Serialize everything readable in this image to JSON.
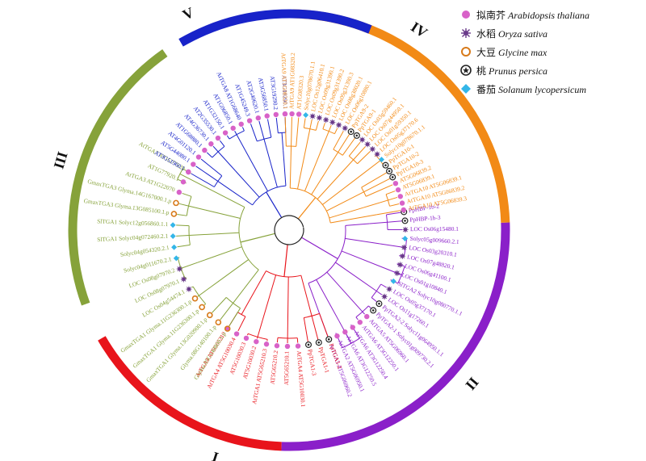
{
  "colors": {
    "clade_I": "#e8141b",
    "clade_II": "#8a1fc9",
    "clade_III": "#86a23a",
    "clade_IV": "#f28a16",
    "clade_V": "#1823c9",
    "arabidopsis": "#d862c8",
    "oryza": "#6a3a8a",
    "glycine": "#d77a1a",
    "prunus": "#222222",
    "solanum": "#33b6e8"
  },
  "legend": [
    {
      "cn": "拟南芥",
      "latin": "Arabidopsis thaliana",
      "marker": "circle",
      "color": "#d862c8"
    },
    {
      "cn": "水稻",
      "latin": "Oryza sativa",
      "marker": "burst",
      "color": "#6a3a8a"
    },
    {
      "cn": "大豆",
      "latin": "Glycine max",
      "marker": "ring",
      "color": "#d77a1a"
    },
    {
      "cn": "桃",
      "latin": "Prunus persica",
      "marker": "star",
      "color": "#222222"
    },
    {
      "cn": "番茄",
      "latin": "Solanum lycopersicum",
      "marker": "diamond",
      "color": "#33b6e8"
    }
  ],
  "clades": [
    {
      "id": "I",
      "label": "I",
      "color": "#e8141b"
    },
    {
      "id": "II",
      "label": "II",
      "color": "#8a1fc9"
    },
    {
      "id": "III",
      "label": "III",
      "color": "#86a23a"
    },
    {
      "id": "IV",
      "label": "IV",
      "color": "#f28a16"
    },
    {
      "id": "V",
      "label": "V",
      "color": "#1823c9"
    }
  ],
  "leaves": [
    {
      "label": "PpHBP-1b-2",
      "clade": "II",
      "marker": "star"
    },
    {
      "label": "PpHBP-1b-3",
      "clade": "II",
      "marker": "star"
    },
    {
      "label": "LOC Os06g15480.1",
      "clade": "II",
      "marker": "burst"
    },
    {
      "label": "Solyc05g009660.2.1",
      "clade": "II",
      "marker": "diamond"
    },
    {
      "label": "LOC Os03g20310.1",
      "clade": "II",
      "marker": "burst"
    },
    {
      "label": "LOC Os07g48820.1",
      "clade": "II",
      "marker": "burst"
    },
    {
      "label": "LOC Os06g41100.1",
      "clade": "II",
      "marker": "burst"
    },
    {
      "label": "LOC Os01g10840.1",
      "clade": "II",
      "marker": "burst"
    },
    {
      "label": "SlTGA2 Solyc10g080770.1.1",
      "clade": "II",
      "marker": "diamond"
    },
    {
      "label": "LOC Os05g37170.1",
      "clade": "II",
      "marker": "burst"
    },
    {
      "label": "LOC Os11g17260.1",
      "clade": "II",
      "marker": "burst"
    },
    {
      "label": "PpTGA2-2 Solyc11g064950.1.1",
      "clade": "II",
      "marker": "star"
    },
    {
      "label": "PpTGA2-1 Solyc01g009730.2.1",
      "clade": "II",
      "marker": "star"
    },
    {
      "label": "AtTGA5 AT5G06960.1",
      "clade": "II",
      "marker": "circle"
    },
    {
      "label": "AtTGA6 AT3G12250.1",
      "clade": "II",
      "marker": "circle"
    },
    {
      "label": "AtTGA6 AT3G12250.4",
      "clade": "II",
      "marker": "circle"
    },
    {
      "label": "AtTGA6 AT3G12250.5",
      "clade": "II",
      "marker": "circle"
    },
    {
      "label": "AtTGA2 AT5G06950.1",
      "clade": "II",
      "marker": "circle"
    },
    {
      "label": "AtTGA5 AT5G06960.2",
      "clade": "II",
      "marker": "circle"
    },
    {
      "label": "PpTGA1-2",
      "clade": "I",
      "marker": "star"
    },
    {
      "label": "PpTGA1-1",
      "clade": "I",
      "marker": "star"
    },
    {
      "label": "PpTGA1-3",
      "clade": "I",
      "marker": "star"
    },
    {
      "label": "AtTGA4 AT5G10030.1",
      "clade": "I",
      "marker": "circle"
    },
    {
      "label": "AT5G65210.1",
      "clade": "I",
      "marker": "circle"
    },
    {
      "label": "AT5G65210.2",
      "clade": "I",
      "marker": "circle"
    },
    {
      "label": "AtTGA1 AT5G65210.3",
      "clade": "I",
      "marker": "circle"
    },
    {
      "label": "AT5G10030.2",
      "clade": "I",
      "marker": "circle"
    },
    {
      "label": "AT5G10030.3",
      "clade": "I",
      "marker": "circle"
    },
    {
      "label": "AtTGA4 AT5G10030.4",
      "clade": "I",
      "marker": "circle"
    },
    {
      "label": "AtTGA4 AT5G65210",
      "clade": "I",
      "marker": "circle"
    },
    {
      "label": "Glyma.05G140800.1.p",
      "clade": "III",
      "marker": "ring"
    },
    {
      "label": "Glyma.08G140100.1.p",
      "clade": "III",
      "marker": "ring"
    },
    {
      "label": "GmaxTGA1 Glyma.13G020900.1.p",
      "clade": "III",
      "marker": "ring"
    },
    {
      "label": "GmaxTGA1 Glyma.11G236300.1.p",
      "clade": "III",
      "marker": "ring"
    },
    {
      "label": "GmaxTGA1 Glyma.11G236300.1.p",
      "clade": "III",
      "marker": "ring"
    },
    {
      "label": "LOC Os04g54474.1",
      "clade": "III",
      "marker": "burst"
    },
    {
      "label": "LOC Os08g07970.1",
      "clade": "III",
      "marker": "burst"
    },
    {
      "label": "LOC Os08g07970.2",
      "clade": "III",
      "marker": "burst"
    },
    {
      "label": "Solyc04g011670.2.1",
      "clade": "III",
      "marker": "diamond"
    },
    {
      "label": "Solyc04g054320.2.1",
      "clade": "III",
      "marker": "diamond"
    },
    {
      "label": "SlTGA1 Solyc04g072460.2.1",
      "clade": "III",
      "marker": "diamond"
    },
    {
      "label": "SlTGA1 Solyc12g056860.1.1",
      "clade": "III",
      "marker": "diamond"
    },
    {
      "label": "GmaxTGA3 Glyma.13G085100.1.p",
      "clade": "III",
      "marker": "ring"
    },
    {
      "label": "GmaxTGA3 Glyma.14G167000.1.p",
      "clade": "III",
      "marker": "ring"
    },
    {
      "label": "AtTGA3 AT1G22070",
      "clade": "III",
      "marker": "circle"
    },
    {
      "label": "AT1G77920.1",
      "clade": "III",
      "marker": "circle"
    },
    {
      "label": "AtTGA7 AT1G77920",
      "clade": "III",
      "marker": "circle"
    },
    {
      "label": "AT3G51960.1",
      "clade": "V",
      "marker": "circle"
    },
    {
      "label": "AT5G44080.1",
      "clade": "V",
      "marker": "circle"
    },
    {
      "label": "AT4G01120.1",
      "clade": "V",
      "marker": "circle"
    },
    {
      "label": "AT1G68880.1",
      "clade": "V",
      "marker": "circle"
    },
    {
      "label": "AT4G36730.1",
      "clade": "V",
      "marker": "circle"
    },
    {
      "label": "AT2G35530.1",
      "clade": "V",
      "marker": "circle"
    },
    {
      "label": "AT1G32150.1",
      "clade": "V",
      "marker": "circle"
    },
    {
      "label": "AT1G06850.1",
      "clade": "V",
      "marker": "circle"
    },
    {
      "label": "AtTGA8 AT1G68640",
      "clade": "V",
      "marker": "circle"
    },
    {
      "label": "AT1G45249.3",
      "clade": "V",
      "marker": "circle"
    },
    {
      "label": "AT2G40620.1",
      "clade": "V",
      "marker": "circle"
    },
    {
      "label": "AT3G56850.1",
      "clade": "V",
      "marker": "circle"
    },
    {
      "label": "AT3G19290.2",
      "clade": "V",
      "marker": "circle"
    },
    {
      "label": "AT3G19290.1",
      "clade": "V",
      "marker": "circle"
    },
    {
      "label": "AtTGA9 AT1G08320.1",
      "clade": "IV",
      "marker": "circle"
    },
    {
      "label": "AtTGA9 AT1G08320.2",
      "clade": "IV",
      "marker": "circle"
    },
    {
      "label": "AT1G08320.3",
      "clade": "IV",
      "marker": "circle"
    },
    {
      "label": "Solyc10g078670.1.1",
      "clade": "IV",
      "marker": "diamond"
    },
    {
      "label": "LOC Os12g06410.1",
      "clade": "IV",
      "marker": "burst"
    },
    {
      "label": "LOC Os09g31390.1",
      "clade": "IV",
      "marker": "burst"
    },
    {
      "label": "LOC Os09g31390.2",
      "clade": "IV",
      "marker": "burst"
    },
    {
      "label": "LOC Os09g31390.3",
      "clade": "IV",
      "marker": "burst"
    },
    {
      "label": "LOC Os08g38020.1",
      "clade": "IV",
      "marker": "burst"
    },
    {
      "label": "LOC Os06g10880.1",
      "clade": "IV",
      "marker": "burst"
    },
    {
      "label": "PpTGA9-2",
      "clade": "IV",
      "marker": "star"
    },
    {
      "label": "PpTGA9-1",
      "clade": "IV",
      "marker": "star"
    },
    {
      "label": "LOC Os03g59460.1",
      "clade": "IV",
      "marker": "burst"
    },
    {
      "label": "LOC Os07g44950.1",
      "clade": "IV",
      "marker": "burst"
    },
    {
      "label": "LOC Os01g59350.1",
      "clade": "IV",
      "marker": "burst"
    },
    {
      "label": "LOC Os05g37170.6",
      "clade": "IV",
      "marker": "burst"
    },
    {
      "label": "Solyc10g078670.1.1",
      "clade": "IV",
      "marker": "diamond"
    },
    {
      "label": "PpTGA10-1",
      "clade": "IV",
      "marker": "star"
    },
    {
      "label": "PpTGA10-2",
      "clade": "IV",
      "marker": "star"
    },
    {
      "label": "PpTGA10-3",
      "clade": "IV",
      "marker": "star"
    },
    {
      "label": "AT5G06839.2",
      "clade": "IV",
      "marker": "circle"
    },
    {
      "label": "AT5G06839.1",
      "clade": "IV",
      "marker": "circle"
    },
    {
      "label": "AtTGA10 AT5G06839.1",
      "clade": "IV",
      "marker": "circle"
    },
    {
      "label": "AtTGA10 AT5G06839.2",
      "clade": "IV",
      "marker": "circle"
    },
    {
      "label": "AtTGA10 AT5G06839.3",
      "clade": "IV",
      "marker": "circle"
    }
  ]
}
